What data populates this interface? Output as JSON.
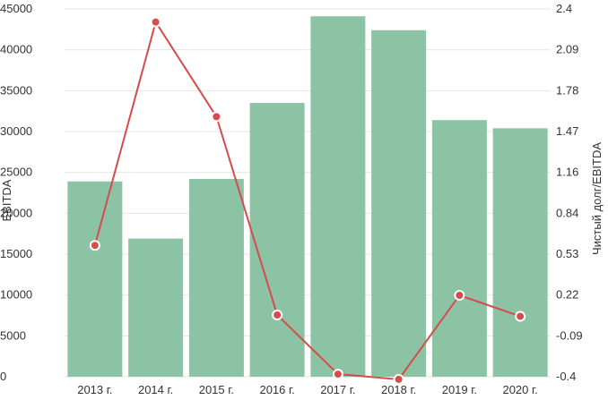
{
  "chart_data": {
    "type": "bar+line",
    "categories": [
      "2013 г.",
      "2014 г.",
      "2015 г.",
      "2016 г.",
      "2017 г.",
      "2018 г.",
      "2019 г.",
      "2020 г."
    ],
    "bar_series": {
      "axis": "left",
      "color": "#8cc3a5",
      "values": [
        23900,
        16900,
        24200,
        33500,
        44100,
        42400,
        31400,
        30400
      ]
    },
    "line_series": {
      "axis": "right",
      "color": "#d64b4b",
      "values": [
        0.6,
        2.3,
        1.58,
        0.07,
        -0.38,
        -0.42,
        0.22,
        0.06
      ]
    },
    "y_left": {
      "label": "EBITDA",
      "ylim": [
        0,
        45000
      ],
      "ticks": [
        "0",
        "5000",
        "10000",
        "15000",
        "20000",
        "25000",
        "30000",
        "35000",
        "40000",
        "45000"
      ]
    },
    "y_right": {
      "label": "Чистый долг/EBITDA",
      "ylim": [
        -0.4,
        2.4
      ],
      "ticks": [
        "-0.4",
        "-0.09",
        "0.22",
        "0.53",
        "0.84",
        "1.16",
        "1.47",
        "1.78",
        "2.09",
        "2.4"
      ]
    },
    "grid": true
  }
}
